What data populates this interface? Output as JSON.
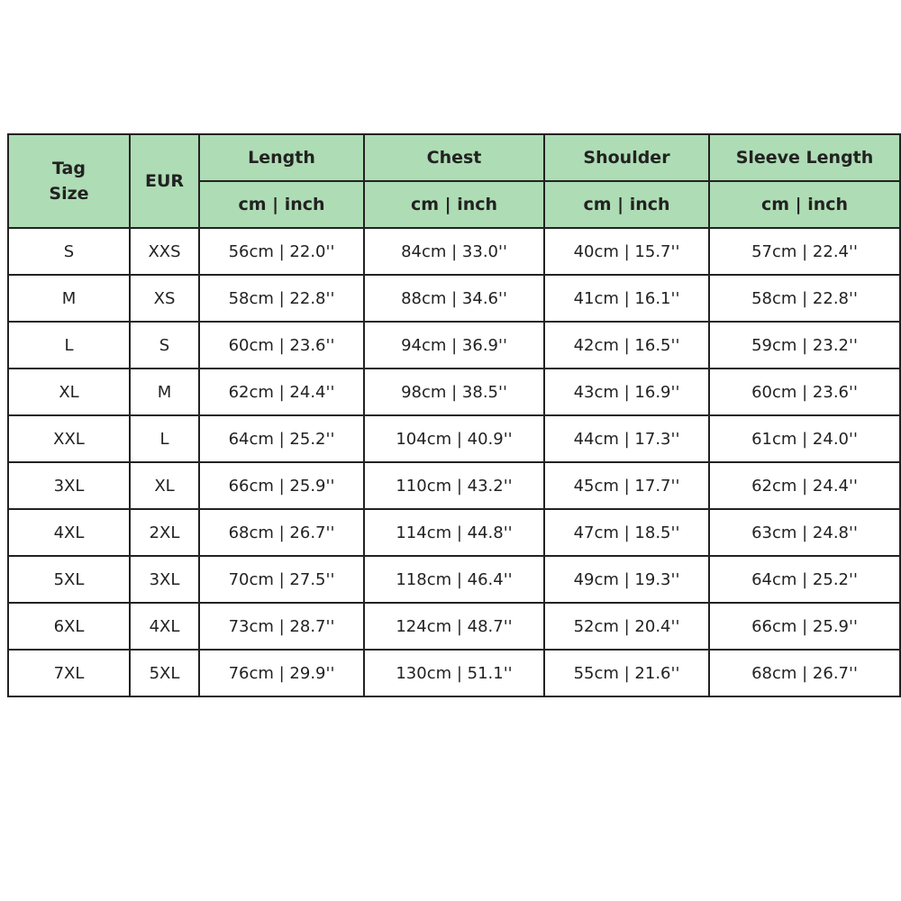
{
  "colors": {
    "header_bg": "#aedcb4",
    "border": "#222222"
  },
  "table": {
    "headers": {
      "tag_size": "Tag\nSize",
      "eur": "EUR",
      "columns": [
        "Length",
        "Chest",
        "Shoulder",
        "Sleeve Length"
      ],
      "unit": "cm | inch"
    },
    "rows": [
      [
        "S",
        "XXS",
        "56cm | 22.0''",
        "84cm | 33.0''",
        "40cm | 15.7''",
        "57cm | 22.4''"
      ],
      [
        "M",
        "XS",
        "58cm | 22.8''",
        "88cm | 34.6''",
        "41cm | 16.1''",
        "58cm | 22.8''"
      ],
      [
        "L",
        "S",
        "60cm | 23.6''",
        "94cm | 36.9''",
        "42cm | 16.5''",
        "59cm | 23.2''"
      ],
      [
        "XL",
        "M",
        "62cm | 24.4''",
        "98cm | 38.5''",
        "43cm | 16.9''",
        "60cm | 23.6''"
      ],
      [
        "XXL",
        "L",
        "64cm | 25.2''",
        "104cm | 40.9''",
        "44cm | 17.3''",
        "61cm | 24.0''"
      ],
      [
        "3XL",
        "XL",
        "66cm | 25.9''",
        "110cm | 43.2''",
        "45cm | 17.7''",
        "62cm | 24.4''"
      ],
      [
        "4XL",
        "2XL",
        "68cm | 26.7''",
        "114cm | 44.8''",
        "47cm | 18.5''",
        "63cm | 24.8''"
      ],
      [
        "5XL",
        "3XL",
        "70cm | 27.5''",
        "118cm | 46.4''",
        "49cm | 19.3''",
        "64cm | 25.2''"
      ],
      [
        "6XL",
        "4XL",
        "73cm | 28.7''",
        "124cm | 48.7''",
        "52cm | 20.4''",
        "66cm | 25.9''"
      ],
      [
        "7XL",
        "5XL",
        "76cm | 29.9''",
        "130cm | 51.1''",
        "55cm | 21.6''",
        "68cm | 26.7''"
      ]
    ]
  }
}
